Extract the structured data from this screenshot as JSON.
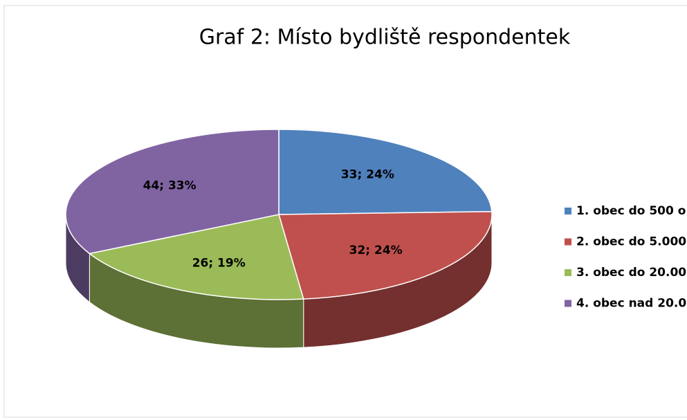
{
  "chart_data": {
    "type": "pie3d",
    "title": "Graf 2: Místo bydliště respondentek",
    "categories": [
      "1. obec do 500 o",
      "2. obec do 5.000",
      "3. obec do 20.00",
      "4. obec nad 20.0"
    ],
    "values": [
      33,
      32,
      26,
      44
    ],
    "value_labels": [
      "33; 24%",
      "32; 24%",
      "26; 19%",
      "44; 33%"
    ],
    "colors": [
      "#4f81bd",
      "#c0504d",
      "#9bbb59",
      "#8064a2"
    ],
    "legend": "right"
  }
}
